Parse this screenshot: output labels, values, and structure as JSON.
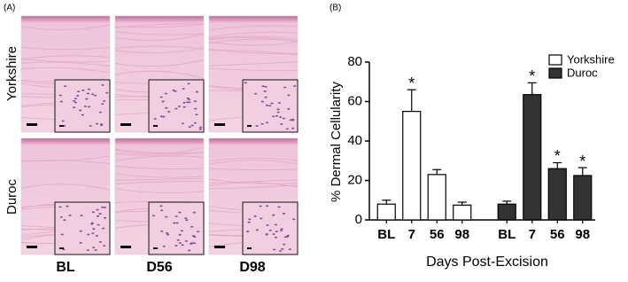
{
  "panel_a": {
    "label": "(A)",
    "row_labels": [
      "Yorkshire",
      "Duroc"
    ],
    "col_labels": [
      "BL",
      "D56",
      "D98"
    ]
  },
  "chart_data": {
    "type": "bar",
    "label": "(B)",
    "y_label": "% Dermal Cellularity",
    "x_label": "Days Post-Excision",
    "categories": [
      "BL",
      "7",
      "56",
      "98"
    ],
    "series": [
      {
        "name": "Yorkshire",
        "color": "#ffffff",
        "values": [
          8,
          55,
          23,
          7.5
        ],
        "errors": [
          2,
          11,
          2.5,
          1.5
        ],
        "markers": [
          null,
          "*",
          null,
          null
        ]
      },
      {
        "name": "Duroc",
        "color": "#333333",
        "values": [
          8,
          63.5,
          26,
          22.5
        ],
        "errors": [
          1.5,
          6,
          3,
          4
        ],
        "markers": [
          null,
          "*",
          "*",
          "*"
        ]
      }
    ],
    "ylim": [
      0,
      80
    ],
    "yticks": [
      0,
      20,
      40,
      60,
      80
    ],
    "legend": "upper-right"
  }
}
